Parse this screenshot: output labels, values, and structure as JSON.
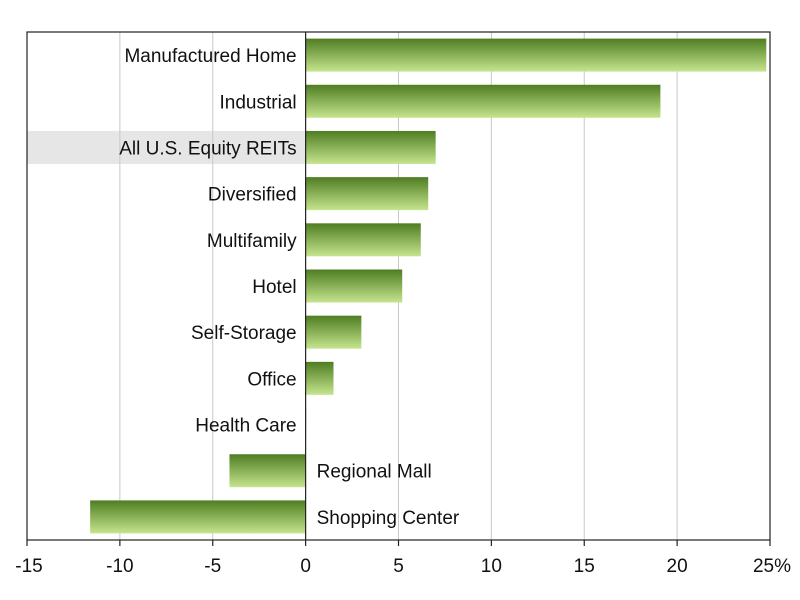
{
  "chart_data": {
    "type": "bar",
    "orientation": "horizontal",
    "categories": [
      "Manufactured Home",
      "Industrial",
      "All U.S. Equity REITs",
      "Diversified",
      "Multifamily",
      "Hotel",
      "Self-Storage",
      "Office",
      "Health Care",
      "Regional Mall",
      "Shopping Center"
    ],
    "values": [
      24.8,
      19.1,
      7.0,
      6.6,
      6.2,
      5.2,
      3.0,
      1.5,
      0.0,
      -4.1,
      -11.6
    ],
    "highlighted_category": "All U.S. Equity REITs",
    "xlim": [
      -15,
      25
    ],
    "xticks": [
      -15,
      -10,
      -5,
      0,
      5,
      10,
      15,
      20,
      25
    ],
    "xtick_labels": [
      "-15",
      "-10",
      "-5",
      "0",
      "5",
      "10",
      "15",
      "20",
      "25%"
    ],
    "grid": true,
    "bar_color_dark": "#4f7d22",
    "bar_color_light": "#c5e58e",
    "highlight_color": "#e6e6e6",
    "grid_color": "#c8c8c8"
  }
}
